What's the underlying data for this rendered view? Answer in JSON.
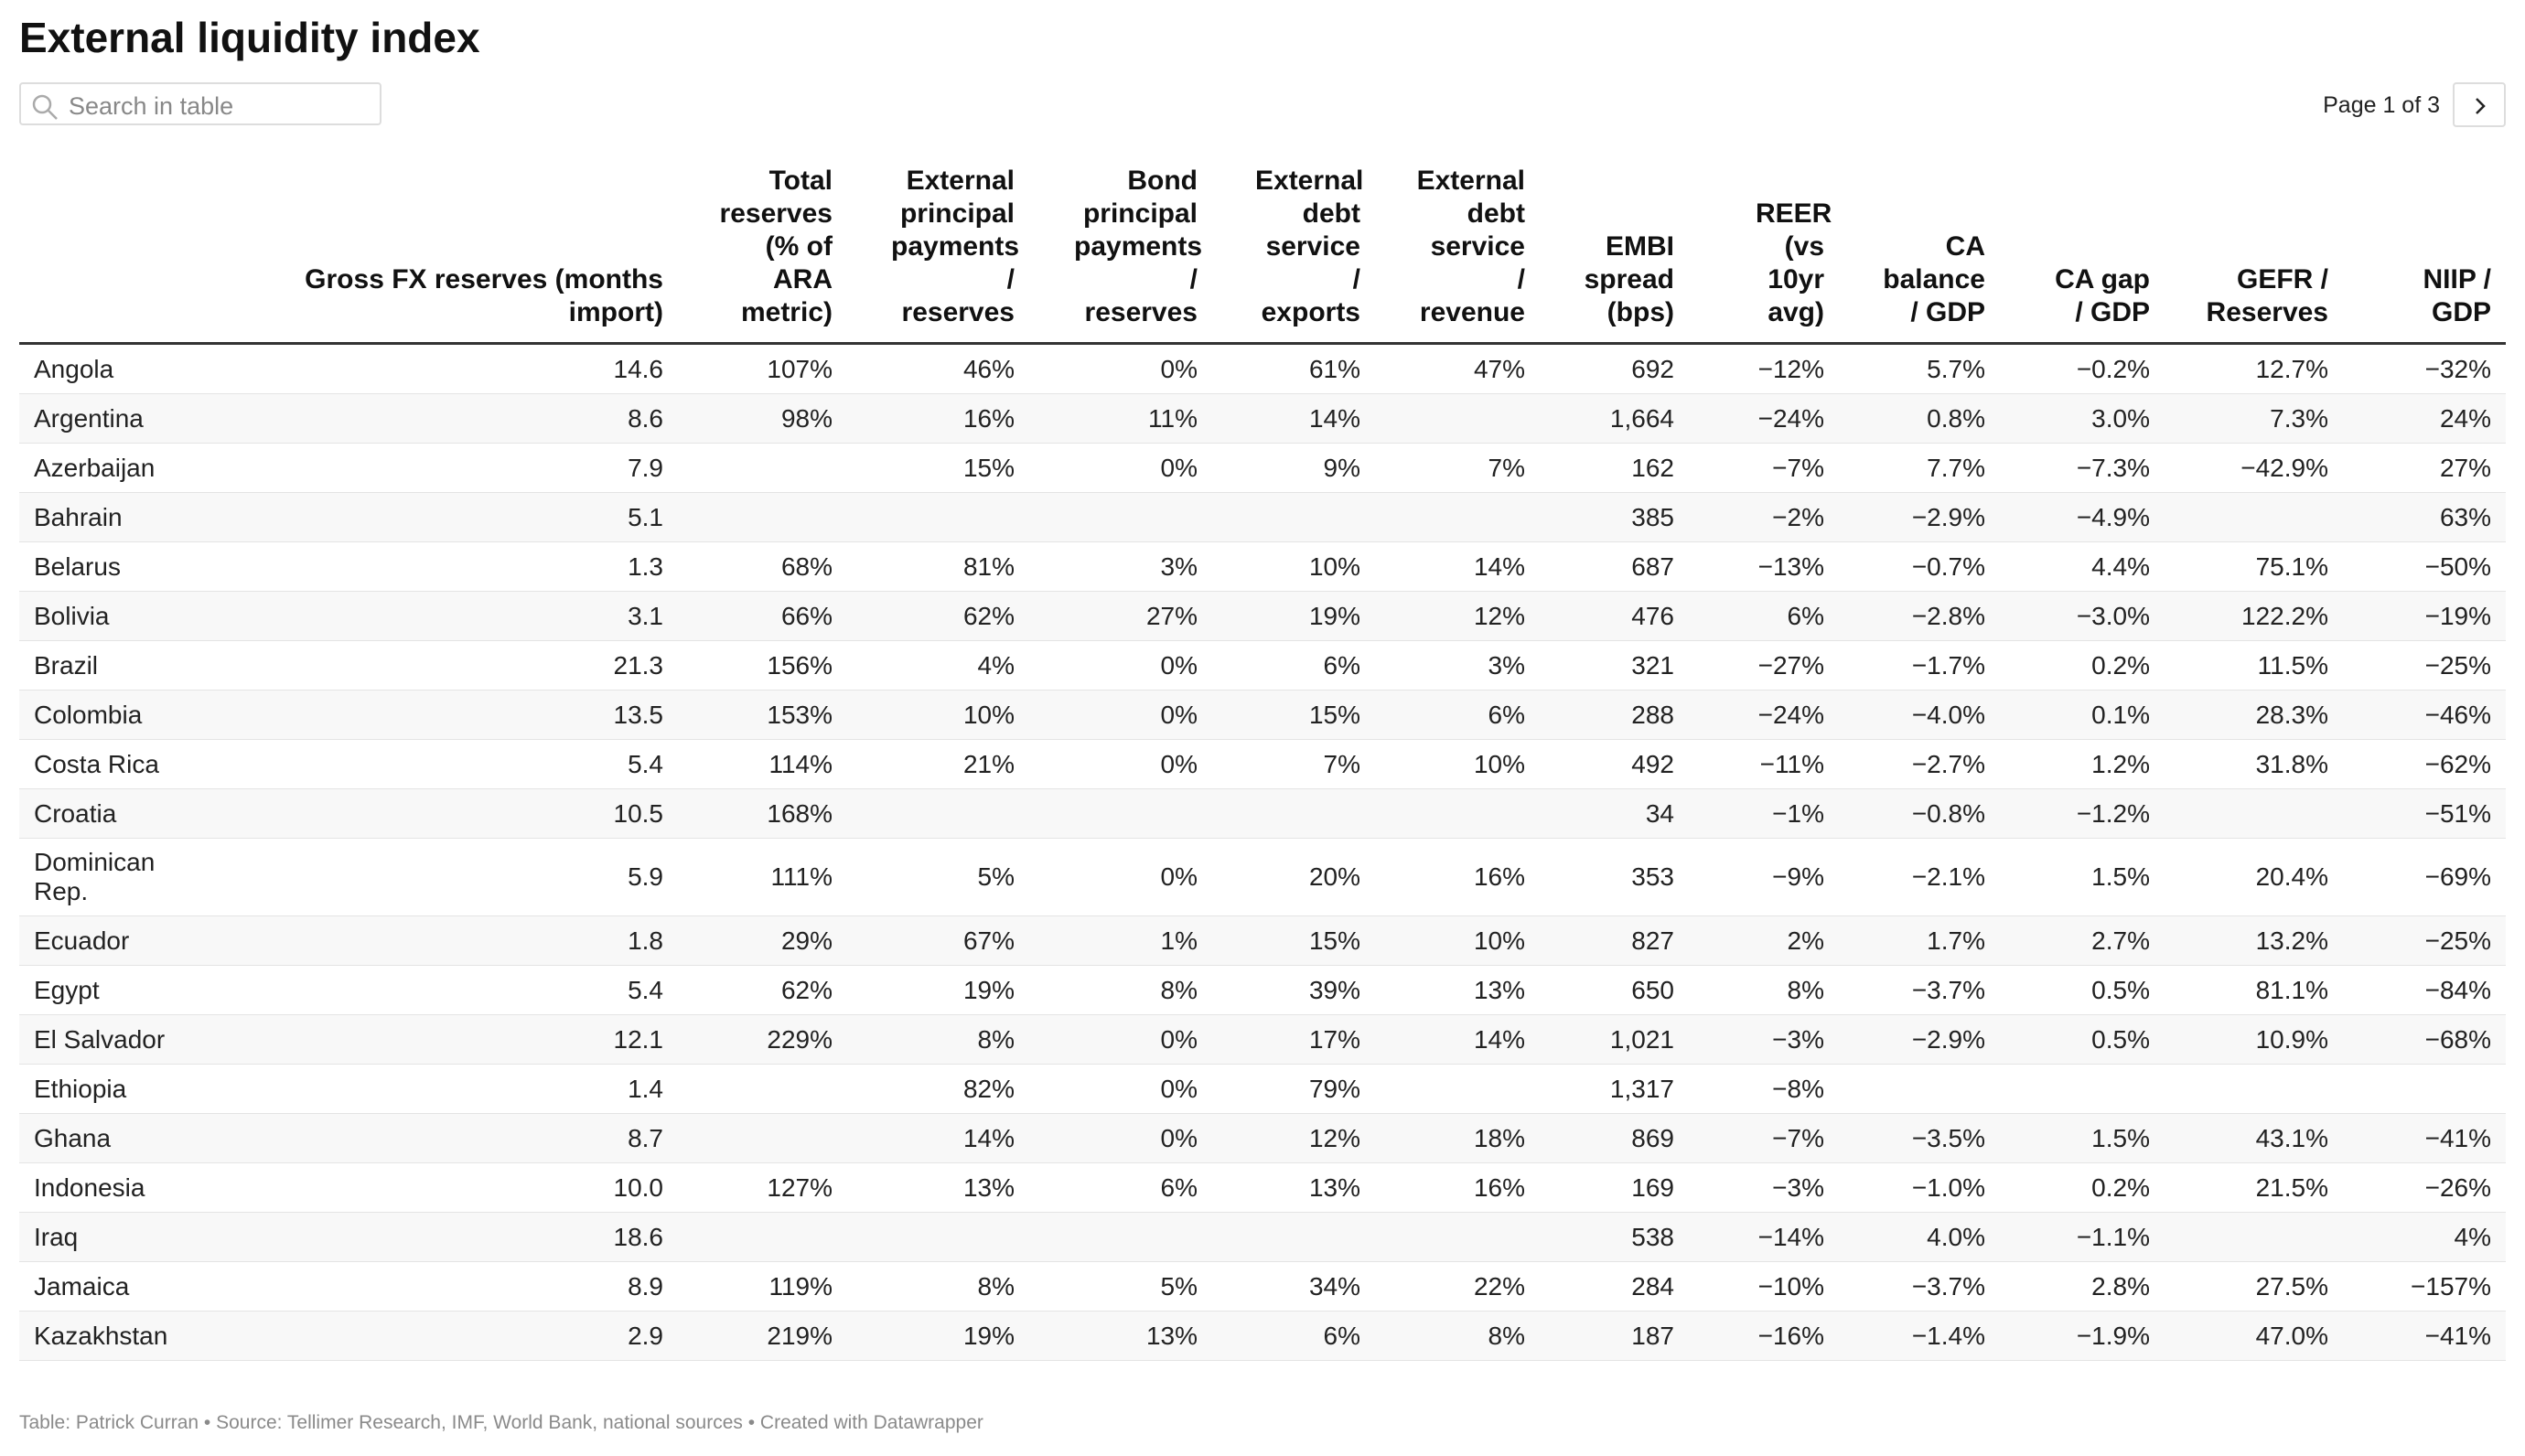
{
  "header": {
    "title": "External liquidity index",
    "search_placeholder": "Search in table",
    "pagination": "Page 1 of 3"
  },
  "table": {
    "columns": [
      null,
      "Gross FX reserves (months import)",
      "Total reserves (% of ARA metric)",
      "External principal payments / reserves",
      "Bond principal payments / reserves",
      "External debt service / exports",
      "External debt service / revenue",
      "EMBI spread (bps)",
      "REER (vs 10yr avg)",
      "CA balance / GDP",
      "CA gap / GDP",
      "GEFR / Reserves",
      "NIIP / GDP"
    ],
    "rows": [
      [
        "Angola",
        "14.6",
        "107%",
        "46%",
        "0%",
        "61%",
        "47%",
        "692",
        "−12%",
        "5.7%",
        "−0.2%",
        "12.7%",
        "−32%"
      ],
      [
        "Argentina",
        "8.6",
        "98%",
        "16%",
        "11%",
        "14%",
        null,
        "1,664",
        "−24%",
        "0.8%",
        "3.0%",
        "7.3%",
        "24%"
      ],
      [
        "Azerbaijan",
        "7.9",
        null,
        "15%",
        "0%",
        "9%",
        "7%",
        "162",
        "−7%",
        "7.7%",
        "−7.3%",
        "−42.9%",
        "27%"
      ],
      [
        "Bahrain",
        "5.1",
        null,
        null,
        null,
        null,
        null,
        "385",
        "−2%",
        "−2.9%",
        "−4.9%",
        null,
        "63%"
      ],
      [
        "Belarus",
        "1.3",
        "68%",
        "81%",
        "3%",
        "10%",
        "14%",
        "687",
        "−13%",
        "−0.7%",
        "4.4%",
        "75.1%",
        "−50%"
      ],
      [
        "Bolivia",
        "3.1",
        "66%",
        "62%",
        "27%",
        "19%",
        "12%",
        "476",
        "6%",
        "−2.8%",
        "−3.0%",
        "122.2%",
        "−19%"
      ],
      [
        "Brazil",
        "21.3",
        "156%",
        "4%",
        "0%",
        "6%",
        "3%",
        "321",
        "−27%",
        "−1.7%",
        "0.2%",
        "11.5%",
        "−25%"
      ],
      [
        "Colombia",
        "13.5",
        "153%",
        "10%",
        "0%",
        "15%",
        "6%",
        "288",
        "−24%",
        "−4.0%",
        "0.1%",
        "28.3%",
        "−46%"
      ],
      [
        "Costa Rica",
        "5.4",
        "114%",
        "21%",
        "0%",
        "7%",
        "10%",
        "492",
        "−11%",
        "−2.7%",
        "1.2%",
        "31.8%",
        "−62%"
      ],
      [
        "Croatia",
        "10.5",
        "168%",
        null,
        null,
        null,
        null,
        "34",
        "−1%",
        "−0.8%",
        "−1.2%",
        null,
        "−51%"
      ],
      [
        "Dominican Rep.",
        "5.9",
        "111%",
        "5%",
        "0%",
        "20%",
        "16%",
        "353",
        "−9%",
        "−2.1%",
        "1.5%",
        "20.4%",
        "−69%"
      ],
      [
        "Ecuador",
        "1.8",
        "29%",
        "67%",
        "1%",
        "15%",
        "10%",
        "827",
        "2%",
        "1.7%",
        "2.7%",
        "13.2%",
        "−25%"
      ],
      [
        "Egypt",
        "5.4",
        "62%",
        "19%",
        "8%",
        "39%",
        "13%",
        "650",
        "8%",
        "−3.7%",
        "0.5%",
        "81.1%",
        "−84%"
      ],
      [
        "El Salvador",
        "12.1",
        "229%",
        "8%",
        "0%",
        "17%",
        "14%",
        "1,021",
        "−3%",
        "−2.9%",
        "0.5%",
        "10.9%",
        "−68%"
      ],
      [
        "Ethiopia",
        "1.4",
        null,
        "82%",
        "0%",
        "79%",
        null,
        "1,317",
        "−8%",
        null,
        null,
        null,
        null
      ],
      [
        "Ghana",
        "8.7",
        null,
        "14%",
        "0%",
        "12%",
        "18%",
        "869",
        "−7%",
        "−3.5%",
        "1.5%",
        "43.1%",
        "−41%"
      ],
      [
        "Indonesia",
        "10.0",
        "127%",
        "13%",
        "6%",
        "13%",
        "16%",
        "169",
        "−3%",
        "−1.0%",
        "0.2%",
        "21.5%",
        "−26%"
      ],
      [
        "Iraq",
        "18.6",
        null,
        null,
        null,
        null,
        null,
        "538",
        "−14%",
        "4.0%",
        "−1.1%",
        null,
        "4%"
      ],
      [
        "Jamaica",
        "8.9",
        "119%",
        "8%",
        "5%",
        "34%",
        "22%",
        "284",
        "−10%",
        "−3.7%",
        "2.8%",
        "27.5%",
        "−157%"
      ],
      [
        "Kazakhstan",
        "2.9",
        "219%",
        "19%",
        "13%",
        "6%",
        "8%",
        "187",
        "−16%",
        "−1.4%",
        "−1.9%",
        "47.0%",
        "−41%"
      ]
    ]
  },
  "footer": "Table: Patrick Curran • Source: Tellimer Research, IMF, World Bank, national sources • Created with Datawrapper"
}
